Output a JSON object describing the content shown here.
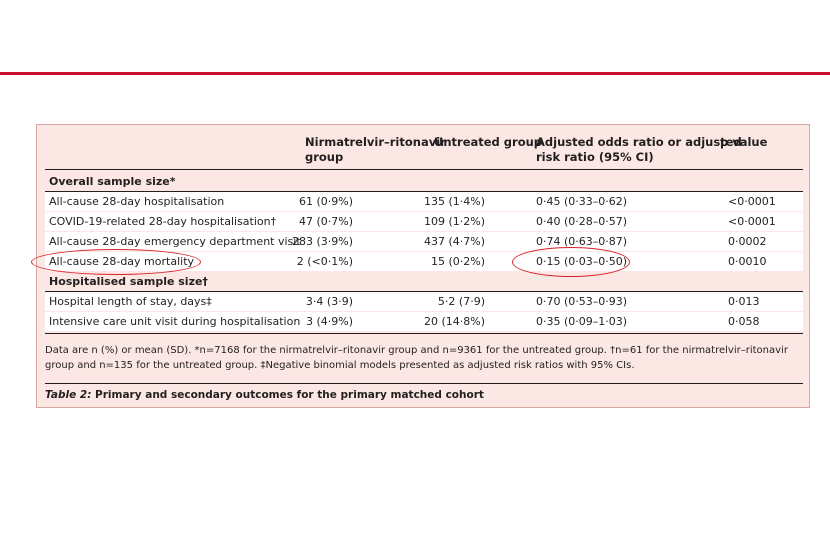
{
  "table": {
    "headers": {
      "col1_line1": "Nirmatrelvir–ritonavir",
      "col1_line2": "group",
      "col2": "Untreated group",
      "col3_line1": "Adjusted odds ratio or adjusted",
      "col3_line2": "risk ratio (95% CI)",
      "col4": "p value"
    },
    "sections": [
      {
        "title": "Overall sample size*",
        "rows": [
          {
            "label": "All-cause 28-day hospitalisation",
            "treated": "61 (0·9%)",
            "untreated": "135 (1·4%)",
            "ratio": "0·45 (0·33–0·62)",
            "p": "<0·0001"
          },
          {
            "label": "COVID-19-related 28-day hospitalisation†",
            "treated": "47 (0·7%)",
            "untreated": "109 (1·2%)",
            "ratio": "0·40 (0·28–0·57)",
            "p": "<0·0001"
          },
          {
            "label": "All-cause 28-day emergency department visit",
            "treated": "283 (3·9%)",
            "untreated": "437 (4·7%)",
            "ratio": "0·74 (0·63–0·87)",
            "p": "0·0002"
          },
          {
            "label": "All-cause 28-day mortality",
            "treated": "2 (<0·1%)",
            "untreated": "15 (0·2%)",
            "ratio": "0·15 (0·03–0·50)",
            "p": "0·0010"
          }
        ]
      },
      {
        "title": "Hospitalised sample size†",
        "rows": [
          {
            "label": "Hospital length of stay, days‡",
            "treated": "3·4 (3·9)",
            "untreated": "5·2 (7·9)",
            "ratio": "0·70 (0·53–0·93)",
            "p": "0·013"
          },
          {
            "label": "Intensive care unit visit during hospitalisation",
            "treated": "3 (4·9%)",
            "untreated": "20 (14·8%)",
            "ratio": "0·35 (0·09–1·03)",
            "p": "0·058"
          }
        ]
      }
    ],
    "footnote": "Data are n (%) or mean (SD). *n=7168 for the nirmatrelvir–ritonavir group and n=9361 for the untreated group. †n=61 for the nirmatrelvir–ritonavir group and n=135 for the untreated group. ‡Negative binomial models presented as adjusted risk ratios with 95% CIs.",
    "caption_label": "Table 2:",
    "caption_text": " Primary and secondary outcomes for the primary matched cohort"
  },
  "annotation_color": "#d8232a",
  "accent_color": "#c8102e"
}
